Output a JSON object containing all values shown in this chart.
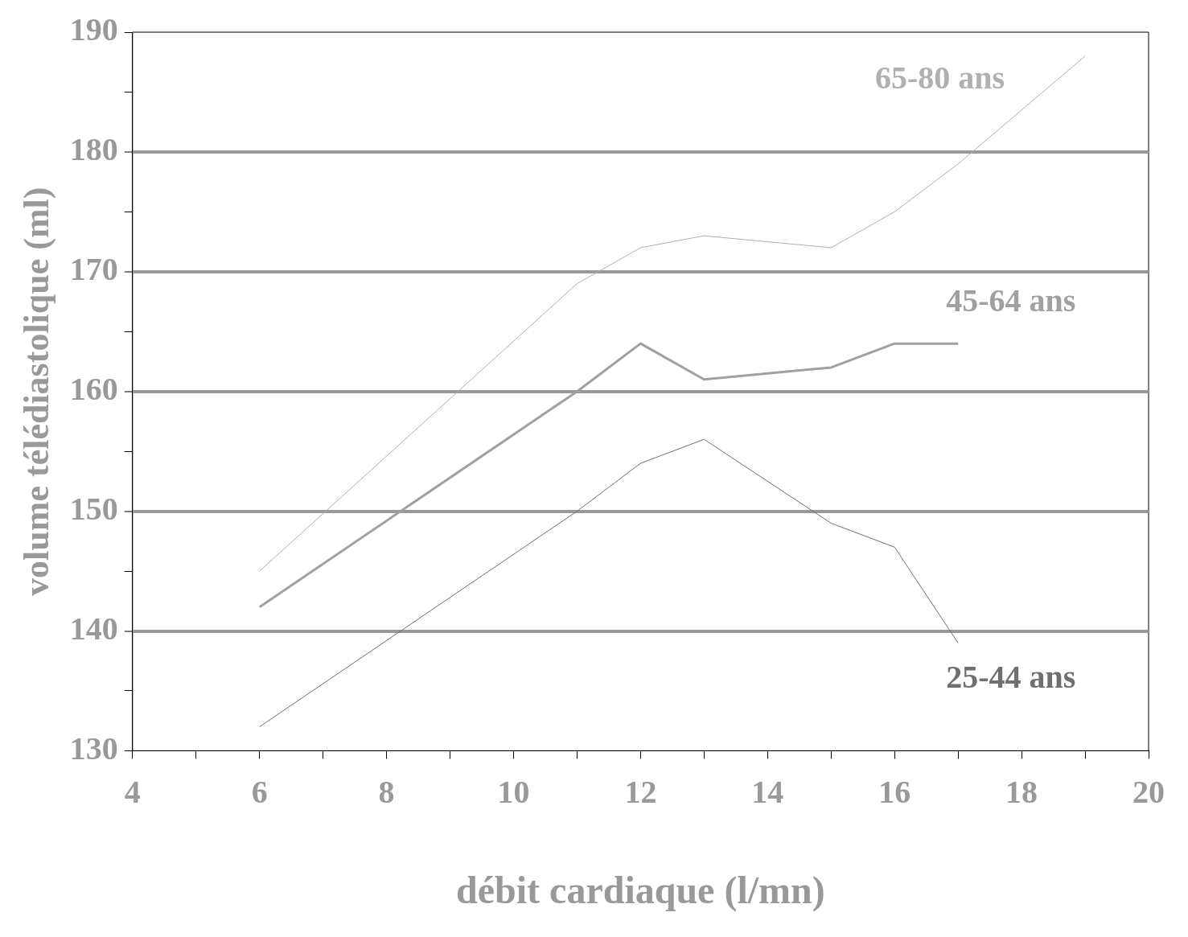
{
  "chart_data": {
    "type": "line",
    "xlabel": "débit cardiaque (l/mn)",
    "ylabel": "volume télédiastolique (ml)",
    "xlim": [
      4,
      20
    ],
    "ylim": [
      130,
      190
    ],
    "xticks": [
      4,
      {
        "value": 5,
        "label": null
      },
      6,
      {
        "value": 7,
        "label": null
      },
      8,
      {
        "value": 9,
        "label": null
      },
      10,
      {
        "value": 11,
        "label": null
      },
      12,
      {
        "value": 13,
        "label": null
      },
      14,
      {
        "value": 15,
        "label": null
      },
      16,
      {
        "value": 17,
        "label": null
      },
      18,
      {
        "value": 19,
        "label": null
      },
      20
    ],
    "yticks": [
      130,
      {
        "value": 135,
        "label": null
      },
      140,
      {
        "value": 145,
        "label": null
      },
      150,
      {
        "value": 155,
        "label": null
      },
      160,
      {
        "value": 165,
        "label": null
      },
      170,
      {
        "value": 175,
        "label": null
      },
      180,
      {
        "value": 185,
        "label": null
      },
      190
    ],
    "grid": "y",
    "legend": false,
    "marker": "none",
    "line_style": "solid",
    "series": [
      {
        "name": "65-80 ans",
        "color": "#b0b0b0",
        "x": [
          6,
          11,
          12,
          13,
          15,
          16,
          17,
          19
        ],
        "values": [
          145,
          169,
          172,
          173,
          172,
          175,
          179,
          188
        ]
      },
      {
        "name": "45-64 ans",
        "color": "#a0a0a0",
        "x": [
          6,
          11,
          12,
          13,
          15,
          16,
          17
        ],
        "values": [
          142,
          160,
          164,
          161,
          162,
          164,
          164
        ]
      },
      {
        "name": "25-44 ans",
        "color": "#707070",
        "x": [
          6,
          11,
          12,
          13,
          15,
          16,
          17
        ],
        "values": [
          132,
          150,
          154,
          156,
          149,
          147,
          139
        ]
      }
    ]
  }
}
